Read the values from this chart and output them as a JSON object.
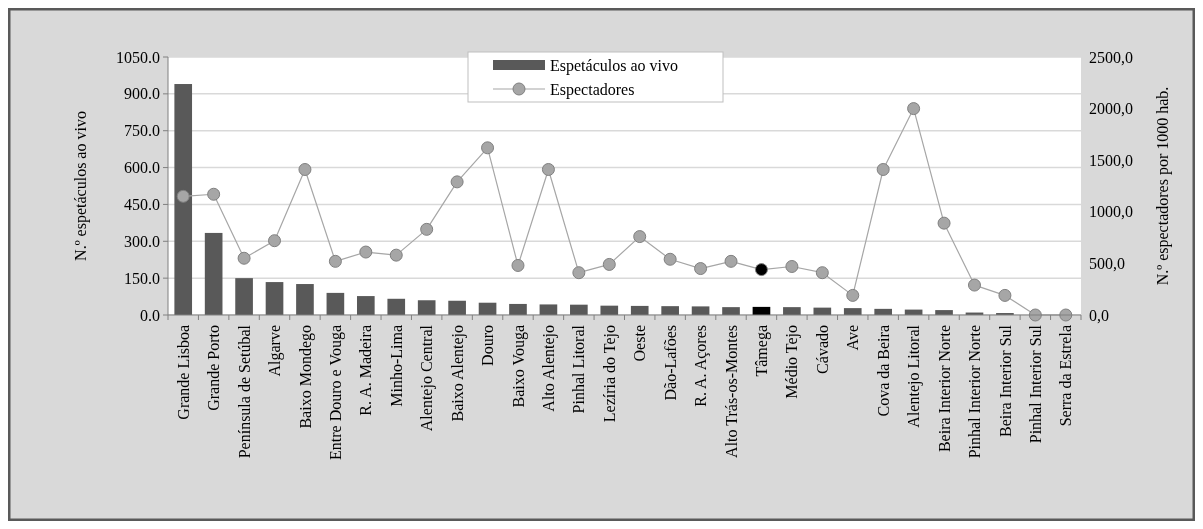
{
  "chart_data": {
    "type": "bar",
    "ylabel": "N.º espetáculos ao vivo",
    "y2label": "N.º espectadores por 1000 hab.",
    "categories": [
      "Grande Lisboa",
      "Grande Porto",
      "Península de Setúbal",
      "Algarve",
      "Baixo Mondego",
      "Entre Douro e Vouga",
      "R. A. Madeira",
      "Minho-Lima",
      "Alentejo Central",
      "Baixo Alentejo",
      "Douro",
      "Baixo Vouga",
      "Alto Alentejo",
      "Pinhal Litoral",
      "Lezíria do Tejo",
      "Oeste",
      "Dão-Lafões",
      "R. A. Açores",
      "Alto Trás-os-Montes",
      "Tâmega",
      "Médio Tejo",
      "Cávado",
      "Ave",
      "Cova da Beira",
      "Alentejo Litoral",
      "Beira Interior Norte",
      "Pinhal Interior Norte",
      "Beira Interior Sul",
      "Pinhal Interior Sul",
      "Serra da Estrela"
    ],
    "series": [
      {
        "name": "Espetáculos ao vivo",
        "color": "#595959",
        "colors": [
          "#595959",
          "#595959",
          "#595959",
          "#595959",
          "#595959",
          "#595959",
          "#595959",
          "#595959",
          "#595959",
          "#595959",
          "#595959",
          "#595959",
          "#595959",
          "#595959",
          "#595959",
          "#595959",
          "#595959",
          "#595959",
          "#595959",
          "#000000",
          "#595959",
          "#595959",
          "#595959",
          "#595959",
          "#595959",
          "#595959",
          "#595959",
          "#595959",
          null,
          null
        ],
        "values": [
          940,
          334,
          150,
          134,
          126,
          90,
          77,
          66,
          60,
          58,
          50,
          45,
          43,
          42,
          38,
          37,
          36,
          35,
          32,
          33,
          32,
          30,
          28,
          25,
          22,
          20,
          10,
          8,
          null,
          null
        ]
      },
      {
        "name": "Espectadores",
        "type": "line",
        "axis": "y2",
        "color": "#a6a6a6",
        "colors": [
          "#a6a6a6",
          "#a6a6a6",
          "#a6a6a6",
          "#a6a6a6",
          "#a6a6a6",
          "#a6a6a6",
          "#a6a6a6",
          "#a6a6a6",
          "#a6a6a6",
          "#a6a6a6",
          "#a6a6a6",
          "#a6a6a6",
          "#a6a6a6",
          "#a6a6a6",
          "#a6a6a6",
          "#a6a6a6",
          "#a6a6a6",
          "#a6a6a6",
          "#a6a6a6",
          "#000000",
          "#a6a6a6",
          "#a6a6a6",
          "#a6a6a6",
          "#a6a6a6",
          "#a6a6a6",
          "#a6a6a6",
          "#a6a6a6",
          "#a6a6a6",
          "#a6a6a6",
          "#a6a6a6"
        ],
        "values": [
          1150,
          1170,
          550,
          720,
          1410,
          520,
          610,
          580,
          830,
          1290,
          1620,
          480,
          1410,
          410,
          490,
          760,
          540,
          450,
          520,
          440,
          470,
          410,
          190,
          1410,
          2000,
          890,
          290,
          190,
          0,
          0
        ]
      }
    ],
    "ylim": [
      0,
      1050
    ],
    "yticks": [
      {
        "value": 0,
        "label": "0.0"
      },
      {
        "value": 150,
        "label": "150.0"
      },
      {
        "value": 300,
        "label": "300.0"
      },
      {
        "value": 450,
        "label": "450.0"
      },
      {
        "value": 600,
        "label": "600.0"
      },
      {
        "value": 750,
        "label": "750.0"
      },
      {
        "value": 900,
        "label": "900.0"
      },
      {
        "value": 1050,
        "label": "1050.0"
      }
    ],
    "y2lim": [
      0,
      2500
    ],
    "y2ticks": [
      {
        "value": 0,
        "label": "0,0"
      },
      {
        "value": 500,
        "label": "500,0"
      },
      {
        "value": 1000,
        "label": "1000,0"
      },
      {
        "value": 1500,
        "label": "1500,0"
      },
      {
        "value": 2000,
        "label": "2000,0"
      },
      {
        "value": 2500,
        "label": "2500,0"
      }
    ],
    "grid": "y",
    "legend": "top",
    "marker": "circle",
    "line_style": "solid"
  }
}
